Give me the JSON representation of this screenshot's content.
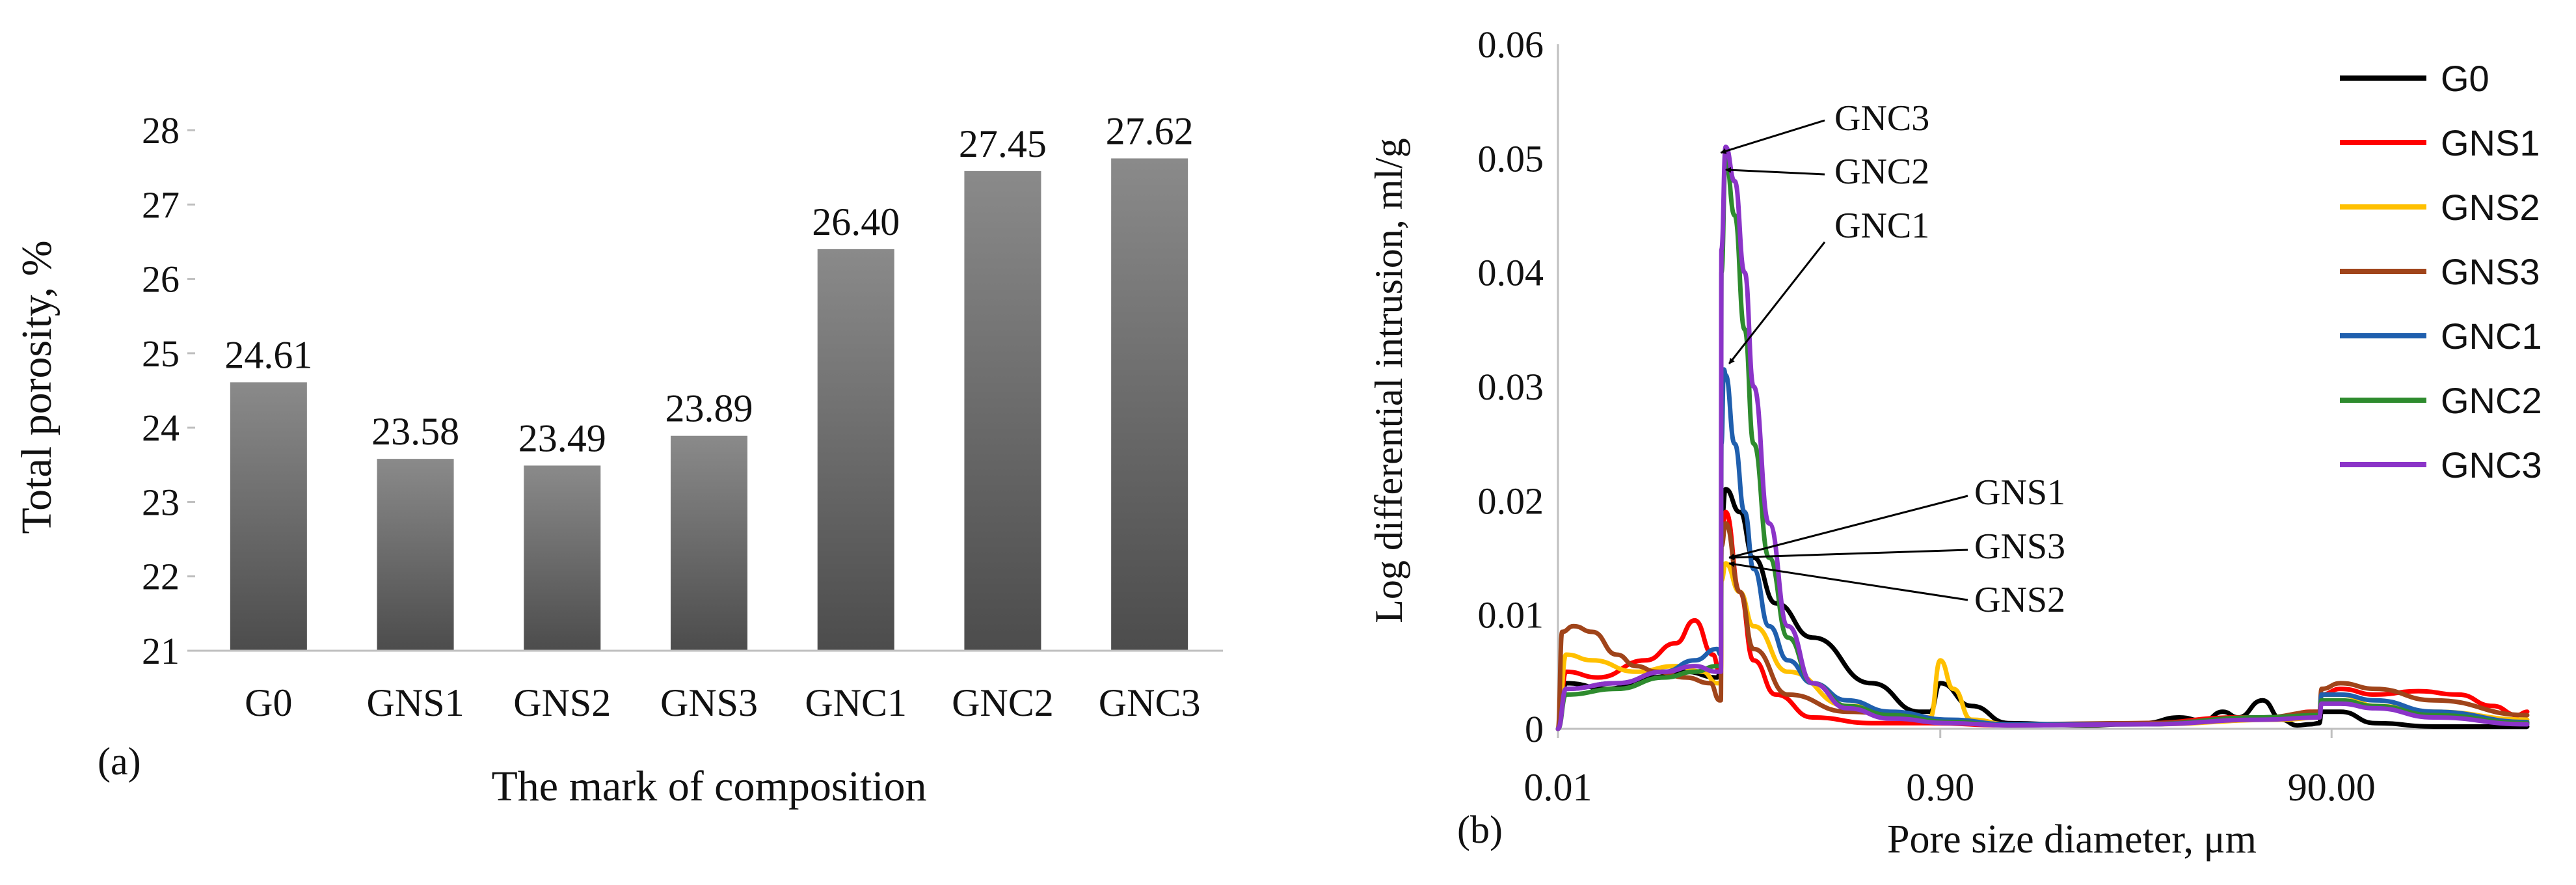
{
  "colors": {
    "bar_light": "#8a8a8a",
    "bar_dark": "#4c4c4c",
    "axis": "#bfbfbf",
    "text": "#111111",
    "G0": "#000000",
    "GNS1": "#ff0000",
    "GNS2": "#ffc000",
    "GNS3": "#a0441a",
    "GNC1": "#1f5fae",
    "GNC2": "#2e8b2e",
    "GNC3": "#8b34c8"
  },
  "chart_data": [
    {
      "type": "bar",
      "panel_label": "(a)",
      "title": "",
      "xlabel": "The mark of composition",
      "ylabel": "Total porosity, %",
      "categories": [
        "G0",
        "GNS1",
        "GNS2",
        "GNS3",
        "GNC1",
        "GNC2",
        "GNC3"
      ],
      "values": [
        24.61,
        23.58,
        23.49,
        23.89,
        26.4,
        27.45,
        27.62
      ],
      "value_labels": [
        "24.61",
        "23.58",
        "23.49",
        "23.89",
        "26.40",
        "27.45",
        "27.62"
      ],
      "ylim": [
        21,
        28
      ],
      "yticks": [
        "21",
        "22",
        "23",
        "24",
        "25",
        "26",
        "27",
        "28"
      ],
      "grid": false
    },
    {
      "type": "line",
      "panel_label": "(b)",
      "title": "",
      "xlabel": "Pore size diameter, μm",
      "ylabel": "Log differential intrusion, ml/g",
      "x_scale": "log",
      "xlim": [
        0.01,
        900
      ],
      "xticks": [
        "0.01",
        "0.90",
        "90.00"
      ],
      "ylim": [
        0,
        0.06
      ],
      "yticks": [
        "0",
        "0.01",
        "0.02",
        "0.03",
        "0.04",
        "0.05",
        "0.06"
      ],
      "legend_position": "right",
      "legend": [
        "G0",
        "GNS1",
        "GNS2",
        "GNS3",
        "GNC1",
        "GNC2",
        "GNC3"
      ],
      "series": [
        {
          "name": "G0",
          "x": [
            0.01,
            0.011,
            0.018,
            0.03,
            0.045,
            0.065,
            0.068,
            0.0685,
            0.072,
            0.085,
            0.1,
            0.13,
            0.2,
            0.4,
            0.7,
            0.8,
            0.9,
            1.3,
            2,
            5,
            10,
            15,
            20,
            25,
            30,
            40,
            50,
            60,
            70,
            78,
            80,
            100,
            150,
            300,
            900
          ],
          "y": [
            0,
            0.004,
            0.0035,
            0.0045,
            0.005,
            0.0045,
            0.005,
            0.018,
            0.021,
            0.019,
            0.015,
            0.011,
            0.008,
            0.004,
            0.0015,
            0.0015,
            0.004,
            0.002,
            0.0005,
            0.0003,
            0.0005,
            0.001,
            0.0007,
            0.0015,
            0.001,
            0.0025,
            0.0008,
            0.0003,
            0.0004,
            0.0005,
            0.0015,
            0.0015,
            0.0005,
            0.0002,
            0.0002
          ]
        },
        {
          "name": "GNS1",
          "x": [
            0.01,
            0.011,
            0.016,
            0.028,
            0.04,
            0.05,
            0.062,
            0.067,
            0.068,
            0.0685,
            0.072,
            0.085,
            0.1,
            0.13,
            0.2,
            0.4,
            0.8,
            2,
            10,
            30,
            50,
            70,
            78,
            80,
            100,
            150,
            250,
            400,
            600,
            800,
            900
          ],
          "y": [
            0,
            0.005,
            0.0045,
            0.006,
            0.0075,
            0.0095,
            0.0065,
            0.005,
            0.005,
            0.017,
            0.019,
            0.012,
            0.006,
            0.003,
            0.001,
            0.0005,
            0.0005,
            0.0003,
            0.0005,
            0.001,
            0.001,
            0.0015,
            0.0015,
            0.003,
            0.0035,
            0.003,
            0.0033,
            0.003,
            0.002,
            0.0012,
            0.0015
          ]
        },
        {
          "name": "GNS2",
          "x": [
            0.01,
            0.011,
            0.015,
            0.025,
            0.04,
            0.055,
            0.065,
            0.068,
            0.0685,
            0.072,
            0.085,
            0.1,
            0.15,
            0.3,
            0.7,
            0.8,
            0.9,
            1.05,
            1.3,
            2,
            10,
            50,
            78,
            80,
            100,
            150,
            300,
            900
          ],
          "y": [
            0,
            0.0065,
            0.006,
            0.005,
            0.0055,
            0.005,
            0.004,
            0.004,
            0.013,
            0.0145,
            0.012,
            0.009,
            0.005,
            0.002,
            0.001,
            0.001,
            0.006,
            0.0035,
            0.0008,
            0.0004,
            0.0004,
            0.0008,
            0.001,
            0.003,
            0.003,
            0.002,
            0.0015,
            0.0008
          ]
        },
        {
          "name": "GNS3",
          "x": [
            0.01,
            0.0105,
            0.012,
            0.015,
            0.02,
            0.025,
            0.032,
            0.045,
            0.06,
            0.067,
            0.068,
            0.0685,
            0.072,
            0.085,
            0.1,
            0.15,
            0.3,
            0.8,
            2,
            10,
            40,
            78,
            80,
            100,
            150,
            300,
            900
          ],
          "y": [
            0,
            0.0085,
            0.009,
            0.0085,
            0.0065,
            0.0055,
            0.005,
            0.0045,
            0.004,
            0.0025,
            0.0025,
            0.016,
            0.018,
            0.012,
            0.007,
            0.003,
            0.0015,
            0.0008,
            0.0004,
            0.0005,
            0.001,
            0.0015,
            0.0035,
            0.004,
            0.0035,
            0.0025,
            0.0012
          ]
        },
        {
          "name": "GNC1",
          "x": [
            0.01,
            0.011,
            0.02,
            0.035,
            0.05,
            0.065,
            0.068,
            0.0685,
            0.0705,
            0.072,
            0.08,
            0.09,
            0.1,
            0.12,
            0.15,
            0.2,
            0.3,
            0.5,
            1,
            2,
            10,
            40,
            78,
            80,
            100,
            150,
            300,
            900
          ],
          "y": [
            0,
            0.0035,
            0.004,
            0.005,
            0.006,
            0.007,
            0.0065,
            0.025,
            0.0315,
            0.031,
            0.025,
            0.019,
            0.014,
            0.009,
            0.006,
            0.004,
            0.0025,
            0.0015,
            0.0008,
            0.0004,
            0.0004,
            0.001,
            0.0012,
            0.003,
            0.003,
            0.0025,
            0.0015,
            0.0006
          ]
        },
        {
          "name": "GNC2",
          "x": [
            0.01,
            0.011,
            0.02,
            0.035,
            0.05,
            0.065,
            0.068,
            0.0685,
            0.072,
            0.08,
            0.09,
            0.1,
            0.12,
            0.15,
            0.2,
            0.3,
            0.5,
            1,
            2,
            10,
            40,
            78,
            80,
            100,
            150,
            300,
            900
          ],
          "y": [
            0,
            0.003,
            0.0035,
            0.0045,
            0.005,
            0.0055,
            0.0055,
            0.04,
            0.05,
            0.045,
            0.035,
            0.025,
            0.015,
            0.008,
            0.004,
            0.002,
            0.0012,
            0.0006,
            0.0003,
            0.0004,
            0.001,
            0.0012,
            0.0025,
            0.0025,
            0.002,
            0.0012,
            0.0005
          ]
        },
        {
          "name": "GNC3",
          "x": [
            0.01,
            0.011,
            0.02,
            0.035,
            0.05,
            0.065,
            0.068,
            0.0685,
            0.072,
            0.08,
            0.09,
            0.1,
            0.12,
            0.15,
            0.2,
            0.3,
            0.5,
            1,
            2,
            10,
            40,
            78,
            80,
            100,
            150,
            300,
            900
          ],
          "y": [
            0,
            0.0035,
            0.004,
            0.005,
            0.0055,
            0.005,
            0.005,
            0.042,
            0.051,
            0.048,
            0.04,
            0.03,
            0.018,
            0.009,
            0.004,
            0.0018,
            0.0009,
            0.0005,
            0.0003,
            0.0004,
            0.0008,
            0.001,
            0.0022,
            0.0022,
            0.0018,
            0.001,
            0.0004
          ]
        }
      ],
      "annotations": [
        {
          "text": "GNC3",
          "target_series": "GNC3",
          "target": [
            0.068,
            0.0505
          ]
        },
        {
          "text": "GNC2",
          "target_series": "GNC2",
          "target": [
            0.072,
            0.049
          ]
        },
        {
          "text": "GNC1",
          "target_series": "GNC1",
          "target": [
            0.075,
            0.032
          ]
        },
        {
          "text": "GNS1",
          "target_series": "GNS1",
          "target": [
            0.075,
            0.015
          ]
        },
        {
          "text": "GNS3",
          "target_series": "GNS3",
          "target": [
            0.075,
            0.015
          ]
        },
        {
          "text": "GNS2",
          "target_series": "GNS2",
          "target": [
            0.075,
            0.0145
          ]
        }
      ]
    }
  ]
}
